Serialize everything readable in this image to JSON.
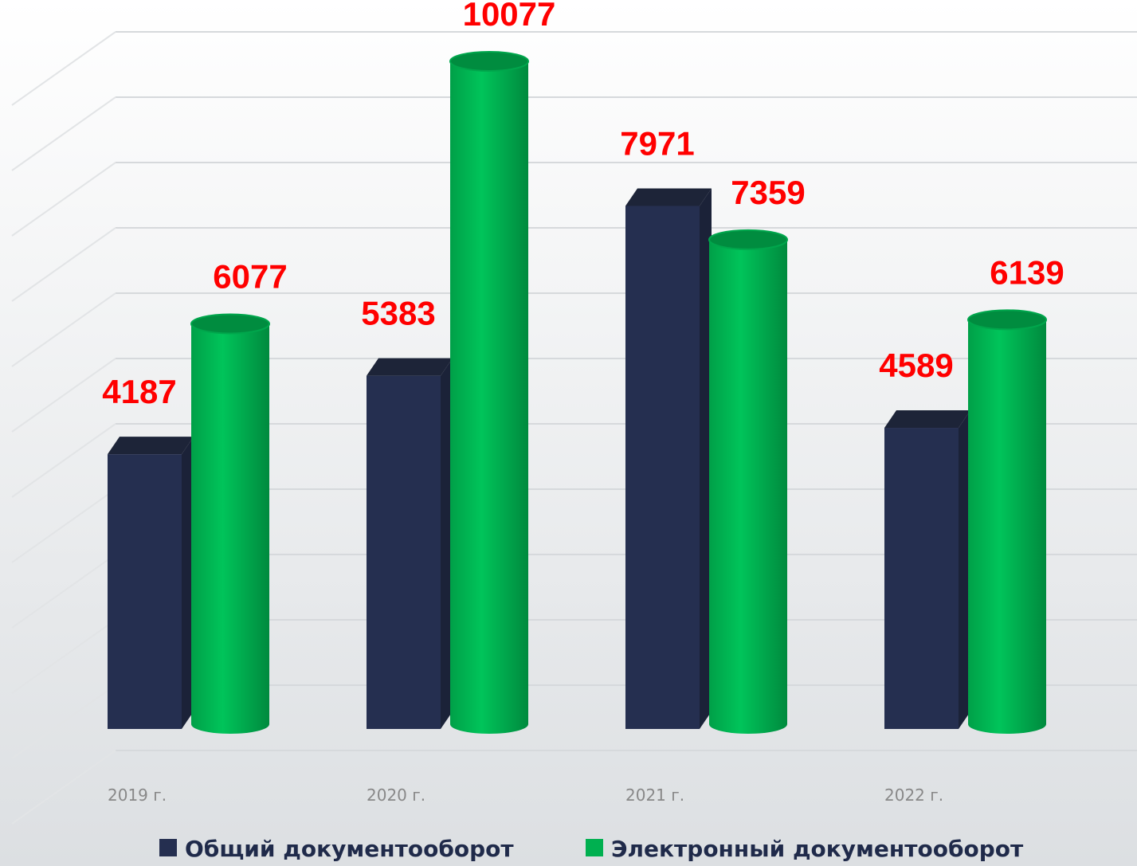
{
  "chart_data": {
    "type": "bar3d",
    "categories": [
      "2019 г.",
      "2020 г.",
      "2021 г.",
      "2022 г."
    ],
    "series": [
      {
        "name": "Общий документооборот",
        "color": "#252f50",
        "values": [
          4187,
          5383,
          7971,
          4589
        ]
      },
      {
        "name": "Электронный документооборот",
        "color": "#00b050",
        "values": [
          6077,
          10077,
          7359,
          6139
        ]
      }
    ],
    "ylim": [
      0,
      11000
    ],
    "yticks": [
      0,
      1000,
      2000,
      3000,
      4000,
      5000,
      6000,
      7000,
      8000,
      9000,
      10000,
      11000
    ],
    "grid": true
  }
}
